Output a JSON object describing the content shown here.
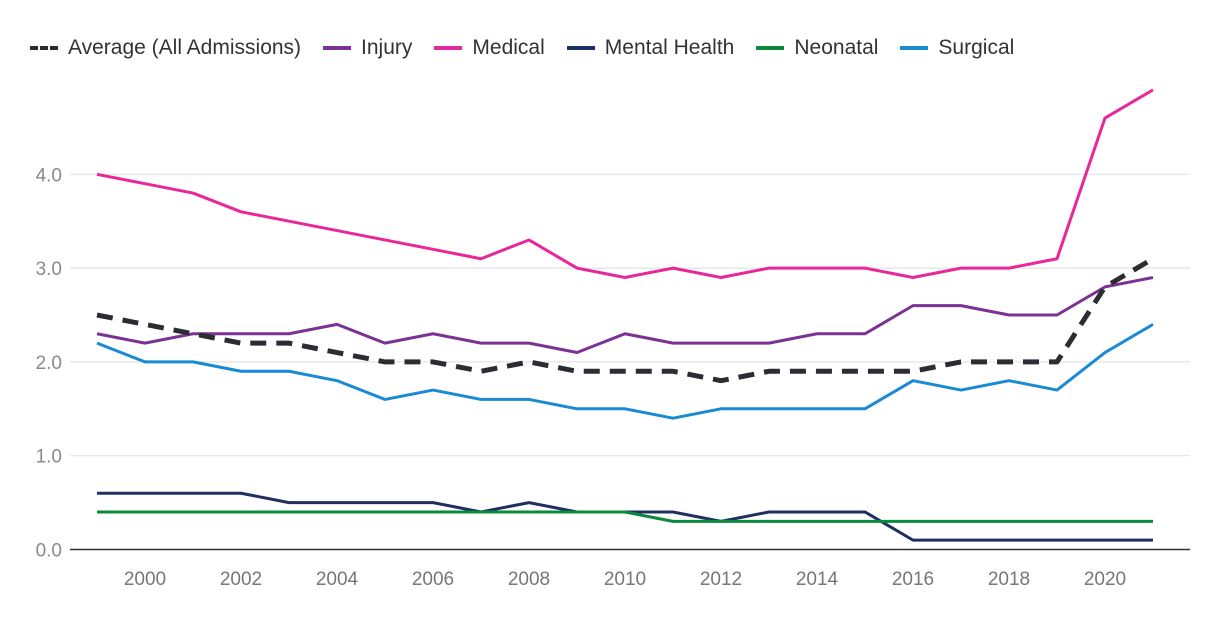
{
  "chart_data": {
    "type": "line",
    "title": "",
    "xlabel": "",
    "ylabel": "",
    "ylim": [
      0,
      5
    ],
    "grid": true,
    "legend_placement": "top-left",
    "x": [
      1999,
      2000,
      2001,
      2002,
      2003,
      2004,
      2005,
      2006,
      2007,
      2008,
      2009,
      2010,
      2011,
      2012,
      2013,
      2014,
      2015,
      2016,
      2017,
      2018,
      2019,
      2020,
      2021
    ],
    "x_ticks": [
      "2000",
      "2002",
      "2004",
      "2006",
      "2008",
      "2010",
      "2012",
      "2014",
      "2016",
      "2018",
      "2020"
    ],
    "y_ticks": [
      "0.0",
      "1.0",
      "2.0",
      "3.0",
      "4.0"
    ],
    "series": [
      {
        "name": "Average (All Admissions)",
        "color": "#2b2d33",
        "dashed": true,
        "values": [
          2.5,
          2.4,
          2.3,
          2.2,
          2.2,
          2.1,
          2.0,
          2.0,
          1.9,
          2.0,
          1.9,
          1.9,
          1.9,
          1.8,
          1.9,
          1.9,
          1.9,
          1.9,
          2.0,
          2.0,
          2.0,
          2.8,
          3.1
        ]
      },
      {
        "name": "Injury",
        "color": "#7b3294",
        "values": [
          2.3,
          2.2,
          2.3,
          2.3,
          2.3,
          2.4,
          2.2,
          2.3,
          2.2,
          2.2,
          2.1,
          2.3,
          2.2,
          2.2,
          2.2,
          2.3,
          2.3,
          2.6,
          2.6,
          2.5,
          2.5,
          2.8,
          2.9
        ]
      },
      {
        "name": "Medical",
        "color": "#e8279b",
        "values": [
          4.0,
          3.9,
          3.8,
          3.6,
          3.5,
          3.4,
          3.3,
          3.2,
          3.1,
          3.3,
          3.0,
          2.9,
          3.0,
          2.9,
          3.0,
          3.0,
          3.0,
          2.9,
          3.0,
          3.0,
          3.1,
          4.6,
          4.9
        ]
      },
      {
        "name": "Mental Health",
        "color": "#1f3060",
        "values": [
          0.6,
          0.6,
          0.6,
          0.6,
          0.5,
          0.5,
          0.5,
          0.5,
          0.4,
          0.5,
          0.4,
          0.4,
          0.4,
          0.3,
          0.4,
          0.4,
          0.4,
          0.1,
          0.1,
          0.1,
          0.1,
          0.1,
          0.1
        ]
      },
      {
        "name": "Neonatal",
        "color": "#0b8a3e",
        "values": [
          0.4,
          0.4,
          0.4,
          0.4,
          0.4,
          0.4,
          0.4,
          0.4,
          0.4,
          0.4,
          0.4,
          0.4,
          0.3,
          0.3,
          0.3,
          0.3,
          0.3,
          0.3,
          0.3,
          0.3,
          0.3,
          0.3,
          0.3
        ]
      },
      {
        "name": "Surgical",
        "color": "#1a8ad4",
        "values": [
          2.2,
          2.0,
          2.0,
          1.9,
          1.9,
          1.8,
          1.6,
          1.7,
          1.6,
          1.6,
          1.5,
          1.5,
          1.4,
          1.5,
          1.5,
          1.5,
          1.5,
          1.8,
          1.7,
          1.8,
          1.7,
          2.1,
          2.4
        ]
      }
    ]
  }
}
